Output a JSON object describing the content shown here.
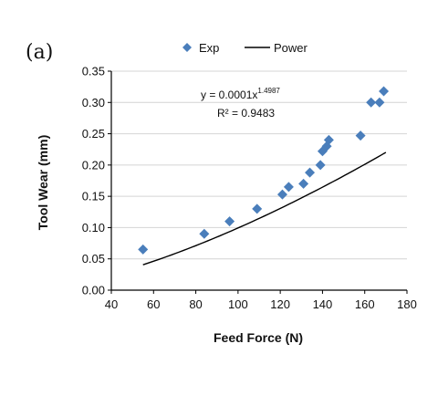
{
  "panel_label": "(a)",
  "chart_data": {
    "type": "scatter",
    "xlabel": "Feed Force (N)",
    "ylabel": "Tool Wear (mm)",
    "xlim": [
      40,
      180
    ],
    "ylim": [
      0,
      0.35
    ],
    "x_ticks": [
      "40",
      "60",
      "80",
      "100",
      "120",
      "140",
      "160",
      "180"
    ],
    "y_ticks": [
      "0.00",
      "0.05",
      "0.10",
      "0.15",
      "0.20",
      "0.25",
      "0.30",
      "0.35"
    ],
    "grid": "horizontal",
    "legend": {
      "placement": "top",
      "entries": [
        "Exp",
        "Power"
      ]
    },
    "series": [
      {
        "name": "Exp",
        "kind": "scatter",
        "color": "#4a7ebb",
        "marker": "diamond",
        "x": [
          55,
          84,
          96,
          109,
          121,
          124,
          131,
          134,
          139,
          140,
          142,
          143,
          158,
          163,
          167,
          169
        ],
        "y": [
          0.065,
          0.09,
          0.11,
          0.13,
          0.153,
          0.165,
          0.17,
          0.188,
          0.2,
          0.222,
          0.23,
          0.24,
          0.247,
          0.3,
          0.3,
          0.318
        ]
      },
      {
        "name": "Power",
        "kind": "line",
        "color": "#000000",
        "coefficient": 0.0001,
        "exponent": 1.4987,
        "x_range": [
          55,
          170
        ]
      }
    ],
    "annotation": {
      "equation_prefix": "y = 0.0001x",
      "equation_exponent": "1.4987",
      "r_squared": "R² = 0.9483"
    }
  }
}
